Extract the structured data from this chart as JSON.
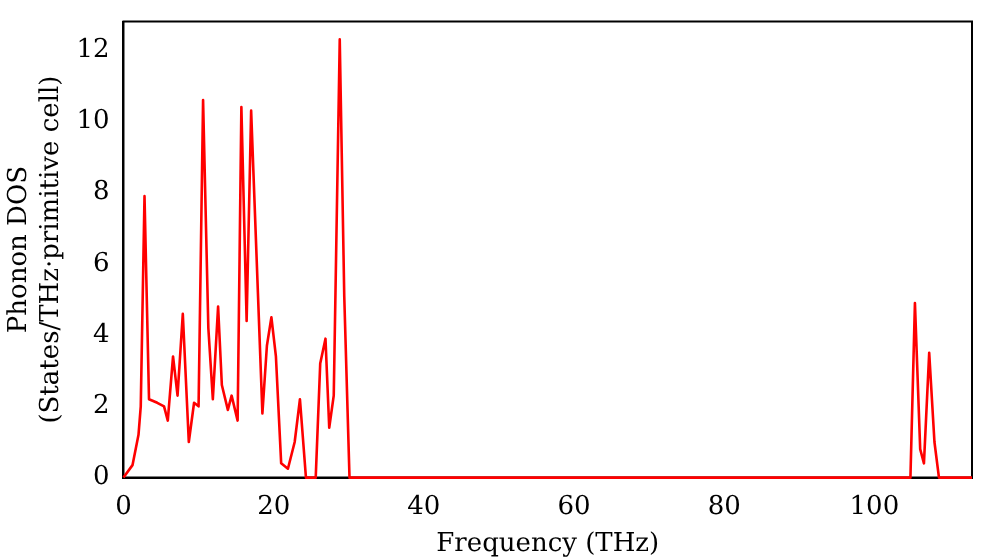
{
  "chart_data": {
    "type": "line",
    "xlabel": "Frequency (THz)",
    "ylabel": "Phonon DOS\n(States/THz·primitive cell)",
    "x": [
      0,
      1.2,
      2.0,
      2.3,
      2.8,
      3.4,
      4.5,
      5.4,
      5.9,
      6.6,
      7.2,
      7.9,
      8.7,
      9.4,
      10.0,
      10.6,
      11.3,
      11.9,
      12.6,
      13.1,
      13.9,
      14.4,
      15.2,
      15.7,
      16.4,
      17.0,
      17.9,
      18.5,
      19.1,
      19.7,
      20.3,
      21.0,
      21.9,
      22.8,
      23.5,
      24.3,
      25.6,
      26.2,
      26.9,
      27.4,
      28.0,
      28.8,
      29.4,
      30.1,
      104.8,
      105.4,
      106.1,
      106.6,
      107.3,
      108.0,
      108.6,
      113
    ],
    "series": [
      {
        "color": "#ff0000",
        "values": [
          0,
          0.35,
          1.2,
          2.0,
          7.9,
          2.2,
          2.1,
          2.0,
          1.6,
          3.4,
          2.3,
          4.6,
          1.0,
          2.1,
          2.0,
          10.6,
          4.2,
          2.2,
          4.8,
          2.6,
          1.9,
          2.3,
          1.6,
          10.4,
          4.4,
          10.3,
          5.2,
          1.8,
          3.7,
          4.5,
          3.4,
          0.4,
          0.25,
          1.0,
          2.2,
          0,
          0,
          3.2,
          3.9,
          1.4,
          2.3,
          12.3,
          5.1,
          0,
          0,
          4.9,
          0.8,
          0.4,
          3.5,
          1.0,
          0,
          0
        ]
      }
    ],
    "xlim": [
      0,
      113
    ],
    "xticks": [
      0,
      20,
      40,
      60,
      80,
      100
    ],
    "ylim": [
      0,
      12.8
    ],
    "yticks": [
      0,
      2,
      4,
      6,
      8,
      10,
      12
    ],
    "grid": false,
    "legend": false,
    "marker": "none",
    "line_style": "solid"
  }
}
